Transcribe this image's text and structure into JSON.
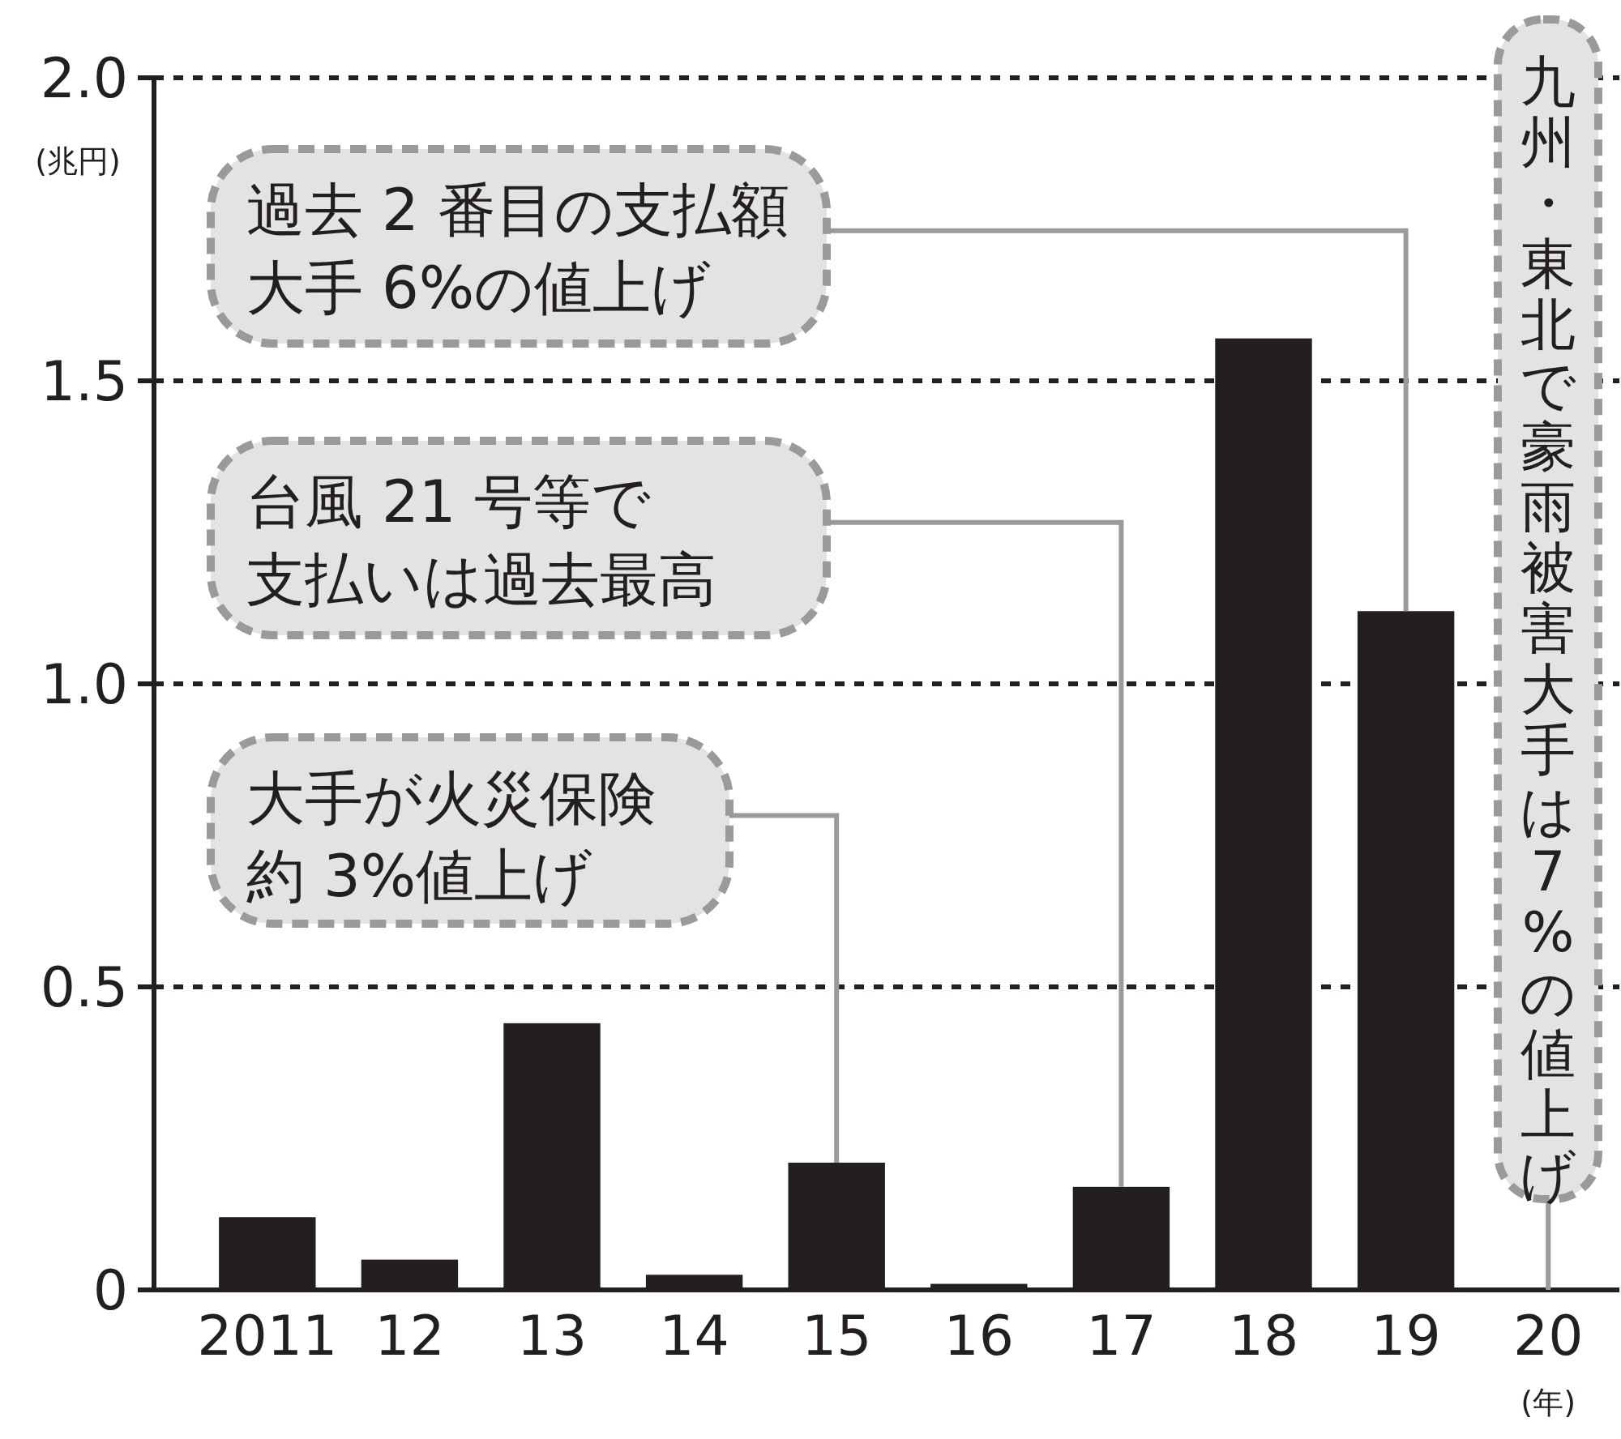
{
  "chart_data": {
    "type": "bar",
    "xlabel": "(年)",
    "ylabel": "(兆円)",
    "categories": [
      "2011",
      "12",
      "13",
      "14",
      "15",
      "16",
      "17",
      "18",
      "19",
      "20"
    ],
    "values": [
      0.12,
      0.05,
      0.44,
      0.025,
      0.21,
      0.01,
      0.17,
      1.57,
      1.12,
      null
    ],
    "color": "#231f20",
    "ylim": [
      0,
      2
    ],
    "yticks": [
      0,
      0.5,
      {
        "value": 1,
        "label": "1.0"
      },
      1.5,
      {
        "value": 2,
        "label": "2.0"
      }
    ],
    "grid": "y",
    "annotations": [
      {
        "text": "過去 2 番目の支払額大手 6%の値上げ",
        "x": "19",
        "y": 1.12
      },
      "台風 21 号等で支払いは過去最高",
      {
        "text": "大手が火災保険約 3%値上げ",
        "x": "15",
        "y": 0.21
      },
      "九州・東北で豪雨被害大手は7%の値上げ"
    ]
  }
}
